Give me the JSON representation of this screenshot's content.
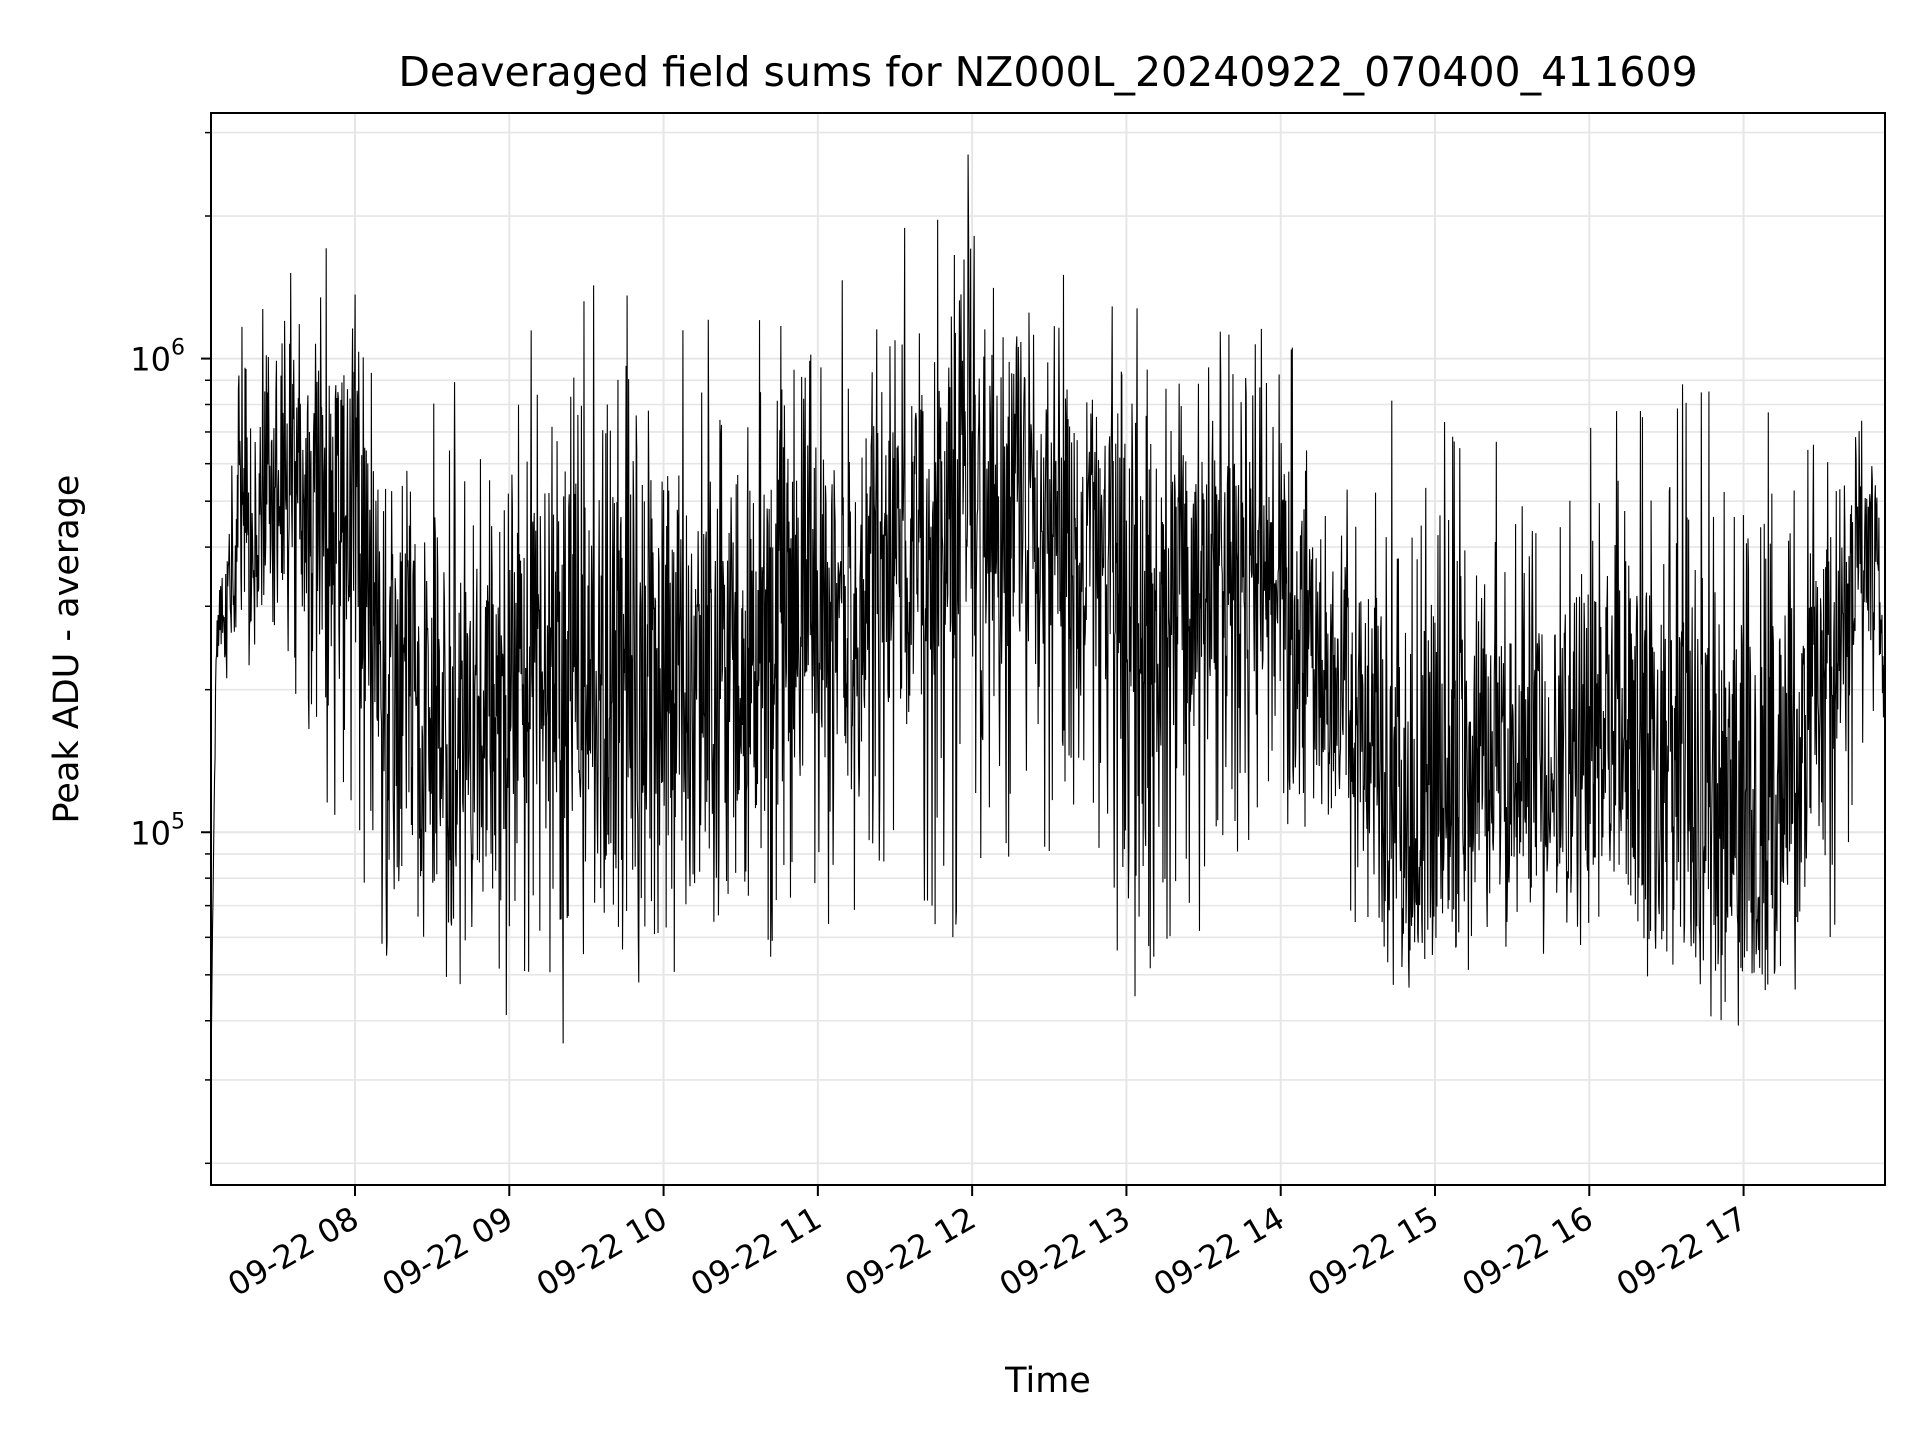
{
  "chart_data": {
    "type": "line",
    "title": "Deaveraged field sums for NZ000L_20240922_070400_411609",
    "xlabel": "Time",
    "ylabel": "Peak ADU - average",
    "yscale": "log",
    "grid": true,
    "ylim": [
      18000,
      3300000
    ],
    "xlim": [
      "09-22 07:04",
      "09-22 17:55"
    ],
    "x_ticks": [
      "09-22 08",
      "09-22 09",
      "09-22 10",
      "09-22 11",
      "09-22 12",
      "09-22 13",
      "09-22 14",
      "09-22 15",
      "09-22 16",
      "09-22 17"
    ],
    "y_ticks": [
      {
        "value": 100000,
        "base": "10",
        "exp": "5"
      },
      {
        "value": 1000000,
        "base": "10",
        "exp": "6"
      }
    ],
    "line_color": "#000000",
    "grid_color": "#e6e6e6",
    "series": [
      {
        "x_start": "09-22 07:04",
        "x_end": "09-22 17:55",
        "envelope": [
          {
            "t": "07:04",
            "low": 33000,
            "high": 33000,
            "typical": 33000
          },
          {
            "t": "07:06",
            "low": 180000,
            "high": 300000,
            "typical": 250000
          },
          {
            "t": "07:15",
            "low": 200000,
            "high": 1200000,
            "typical": 450000
          },
          {
            "t": "07:30",
            "low": 230000,
            "high": 1500000,
            "typical": 500000
          },
          {
            "t": "07:50",
            "low": 110000,
            "high": 1800000,
            "typical": 550000
          },
          {
            "t": "08:00",
            "low": 80000,
            "high": 2400000,
            "typical": 500000
          },
          {
            "t": "08:15",
            "low": 50000,
            "high": 900000,
            "typical": 200000
          },
          {
            "t": "08:45",
            "low": 45000,
            "high": 900000,
            "typical": 170000
          },
          {
            "t": "09:15",
            "low": 33000,
            "high": 1400000,
            "typical": 250000
          },
          {
            "t": "09:45",
            "low": 45000,
            "high": 1500000,
            "typical": 200000
          },
          {
            "t": "10:15",
            "low": 50000,
            "high": 1200000,
            "typical": 220000
          },
          {
            "t": "10:45",
            "low": 55000,
            "high": 1300000,
            "typical": 260000
          },
          {
            "t": "11:20",
            "low": 70000,
            "high": 1700000,
            "typical": 350000
          },
          {
            "t": "11:45",
            "low": 45000,
            "high": 2100000,
            "typical": 400000
          },
          {
            "t": "12:00",
            "low": 80000,
            "high": 2800000,
            "typical": 550000
          },
          {
            "t": "12:20",
            "low": 90000,
            "high": 1900000,
            "typical": 520000
          },
          {
            "t": "12:45",
            "low": 80000,
            "high": 1400000,
            "typical": 400000
          },
          {
            "t": "13:10",
            "low": 35000,
            "high": 1400000,
            "typical": 300000
          },
          {
            "t": "13:40",
            "low": 80000,
            "high": 1200000,
            "typical": 380000
          },
          {
            "t": "14:00",
            "low": 100000,
            "high": 1200000,
            "typical": 350000
          },
          {
            "t": "14:30",
            "low": 60000,
            "high": 700000,
            "typical": 180000
          },
          {
            "t": "14:45",
            "low": 45000,
            "high": 850000,
            "typical": 110000
          },
          {
            "t": "15:15",
            "low": 50000,
            "high": 700000,
            "typical": 130000
          },
          {
            "t": "15:45",
            "low": 55000,
            "high": 700000,
            "typical": 150000
          },
          {
            "t": "16:10",
            "low": 50000,
            "high": 800000,
            "typical": 180000
          },
          {
            "t": "16:40",
            "low": 40000,
            "high": 900000,
            "typical": 120000
          },
          {
            "t": "17:10",
            "low": 38000,
            "high": 800000,
            "typical": 110000
          },
          {
            "t": "17:35",
            "low": 60000,
            "high": 650000,
            "typical": 250000
          },
          {
            "t": "17:50",
            "low": 150000,
            "high": 1000000,
            "typical": 450000
          },
          {
            "t": "17:55",
            "low": 150000,
            "high": 350000,
            "typical": 200000
          }
        ]
      }
    ]
  }
}
